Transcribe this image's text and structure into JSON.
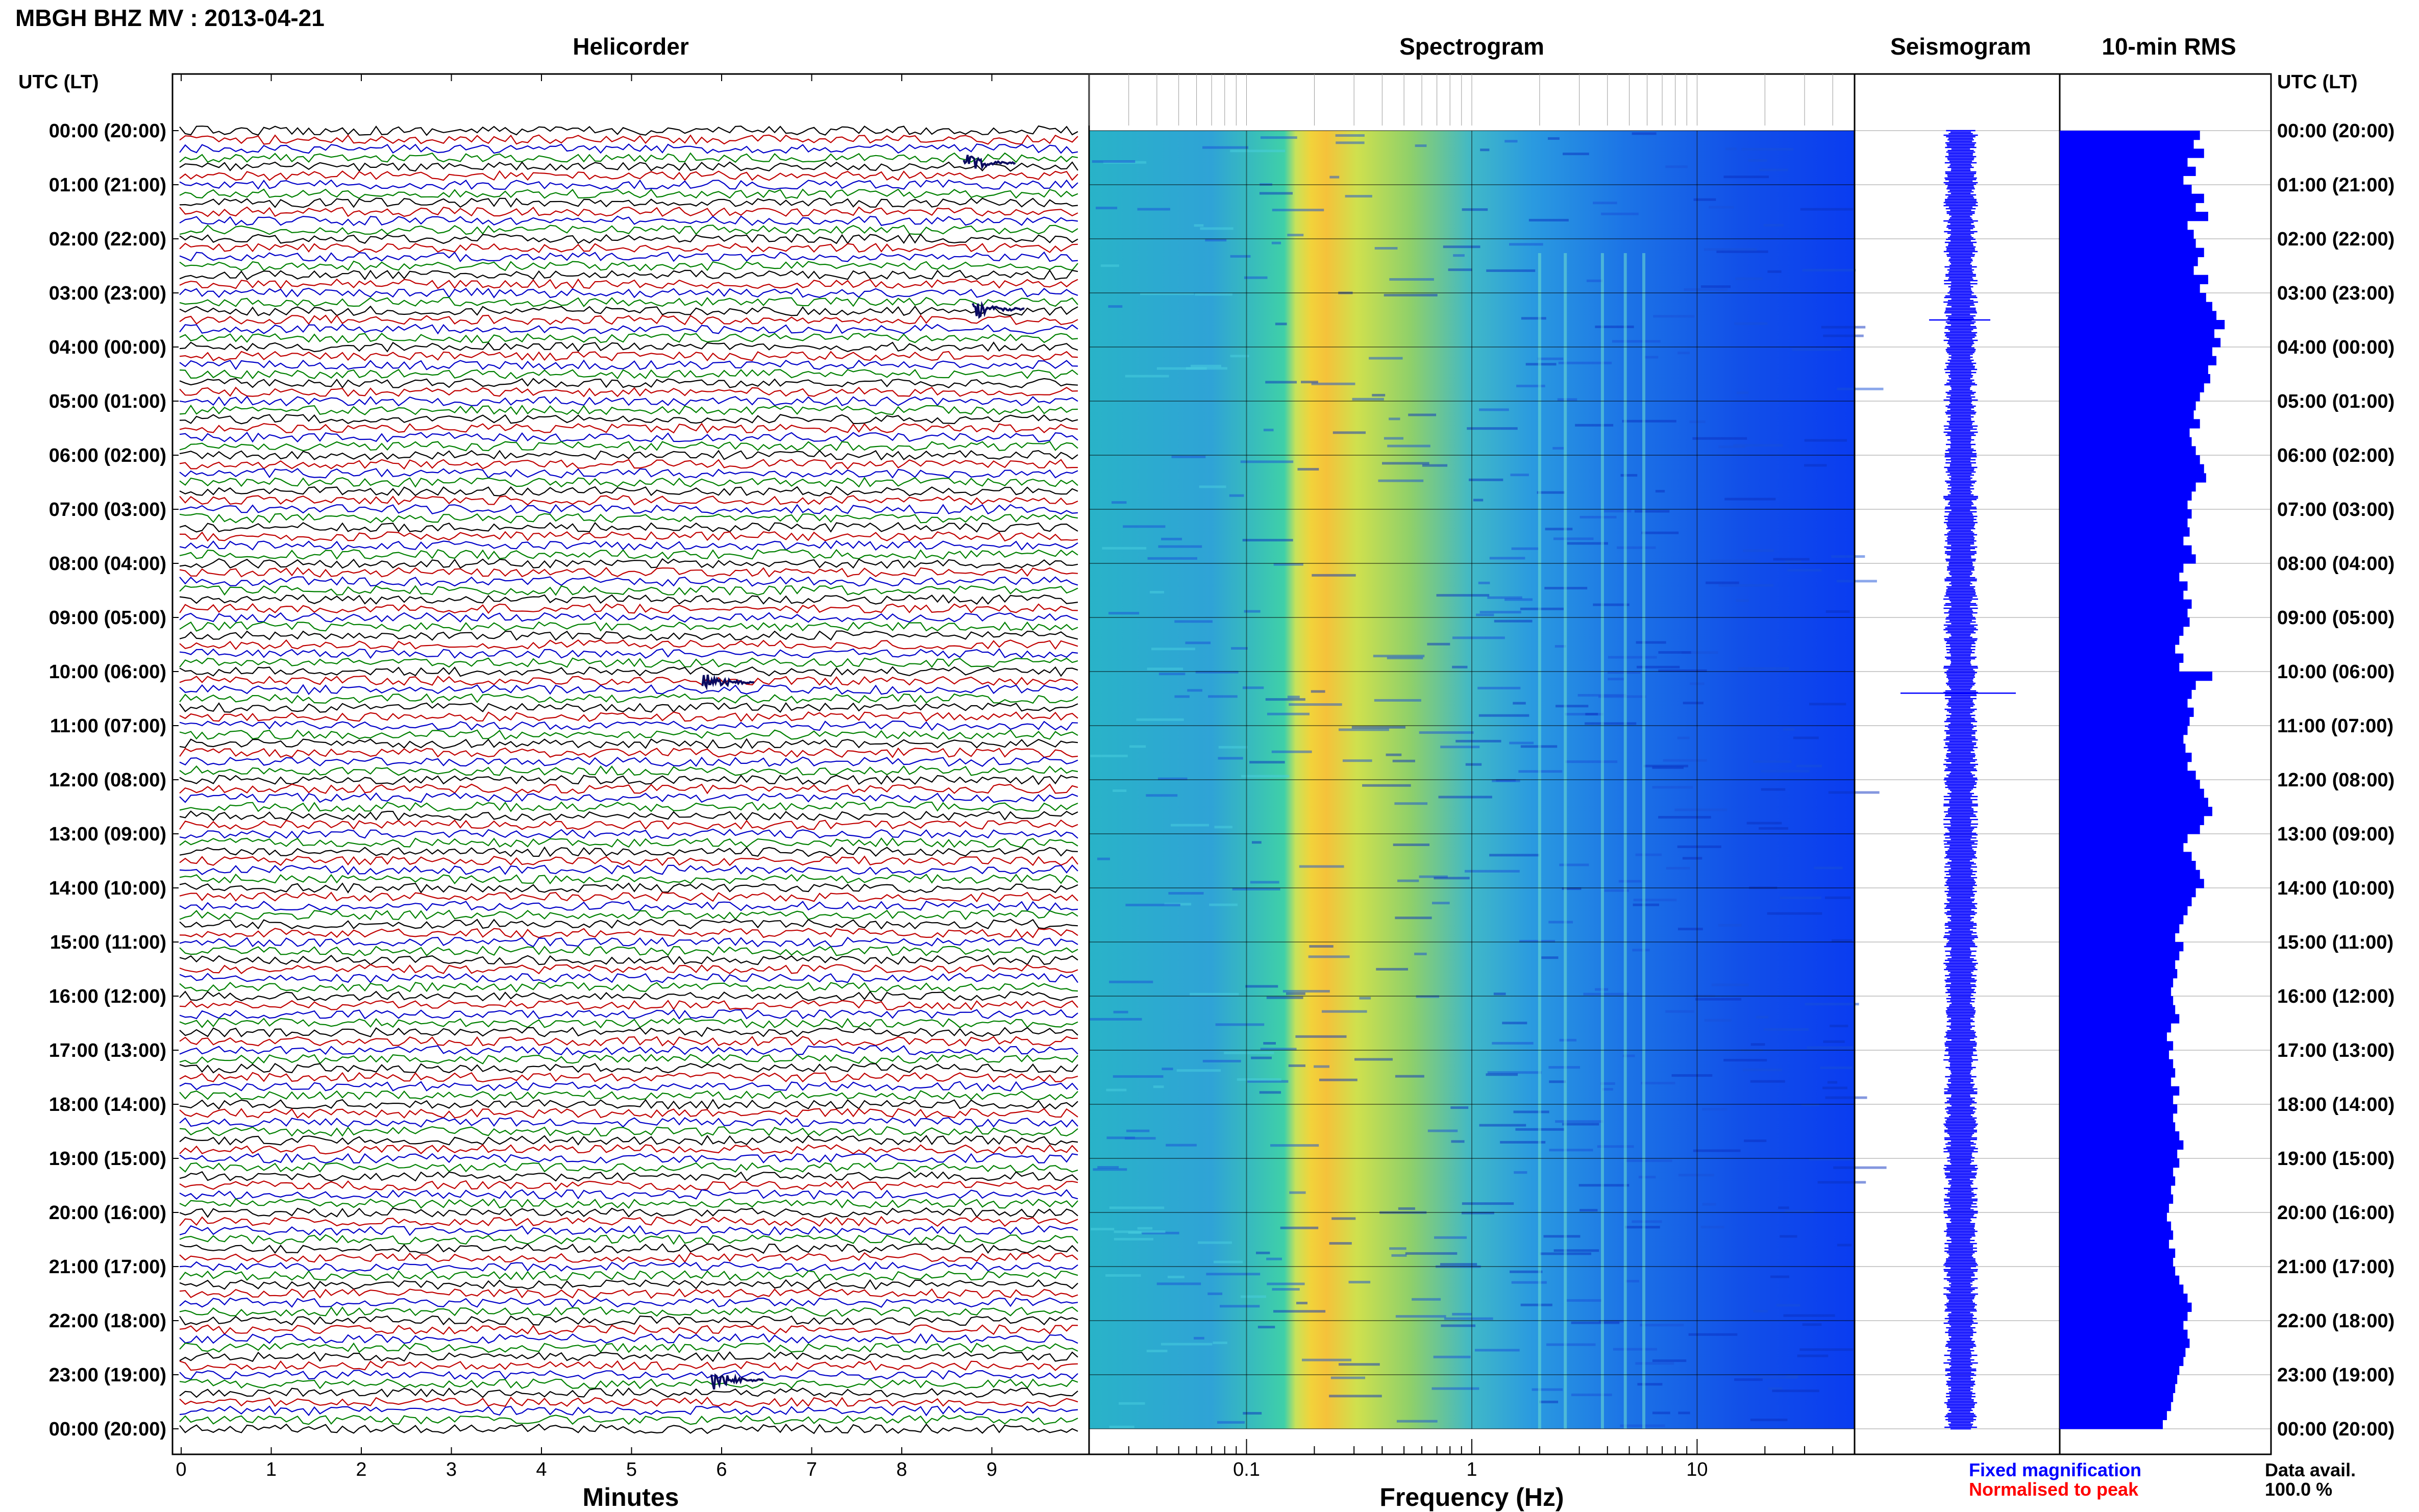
{
  "header": {
    "title": "MBGH BHZ MV : 2013-04-21"
  },
  "panels": {
    "helicorder": "Helicorder",
    "spectrogram": "Spectrogram",
    "seismogram": "Seismogram",
    "rms": "10-min RMS"
  },
  "axes": {
    "utc_header_left": "UTC (LT)",
    "utc_header_right": "UTC (LT)",
    "minutes_label": "Minutes",
    "frequency_label": "Frequency (Hz)"
  },
  "legend": {
    "fixed": "Fixed magnification",
    "normalised": "Normalised to peak",
    "data_avail_label": "Data avail.",
    "data_avail_value": "100.0 %"
  },
  "colors": {
    "trace_cycle": [
      "#000000",
      "#c00000",
      "#0000c8",
      "#008000"
    ],
    "seismogram": "#0000ff",
    "rms": "#0000ff",
    "fixed_legend": "#0000ff",
    "normalised_legend": "#ff0000"
  },
  "chart_data": [
    {
      "type": "line",
      "panel": "helicorder",
      "xlabel": "Minutes",
      "x_ticks": [
        0,
        1,
        2,
        3,
        4,
        5,
        6,
        7,
        8,
        9
      ],
      "xlim": [
        0,
        10
      ],
      "y_tick_labels": [
        "00:00 (20:00)",
        "01:00 (21:00)",
        "02:00 (22:00)",
        "03:00 (23:00)",
        "04:00 (00:00)",
        "05:00 (01:00)",
        "06:00 (02:00)",
        "07:00 (03:00)",
        "08:00 (04:00)",
        "09:00 (05:00)",
        "10:00 (06:00)",
        "11:00 (07:00)",
        "12:00 (08:00)",
        "13:00 (09:00)",
        "14:00 (10:00)",
        "15:00 (11:00)",
        "16:00 (12:00)",
        "17:00 (13:00)",
        "18:00 (14:00)",
        "19:00 (15:00)",
        "20:00 (16:00)",
        "21:00 (17:00)",
        "22:00 (18:00)",
        "23:00 (19:00)",
        "00:00 (20:00)"
      ],
      "lines_per_hour": 6,
      "minutes_per_line": 10,
      "events_minute_hour": [
        [
          8.8,
          0.6
        ],
        [
          8.9,
          3.3
        ],
        [
          5.9,
          10.2
        ],
        [
          6.0,
          23.1
        ]
      ]
    },
    {
      "type": "heatmap",
      "panel": "spectrogram",
      "xlabel": "Frequency (Hz)",
      "x_scale": "log",
      "x_ticks": [
        0.1,
        1,
        10
      ],
      "xlim": [
        0.02,
        50
      ],
      "peak_band_hz": [
        0.18,
        0.45
      ],
      "tremor_lines_hz": [
        2.0,
        2.6,
        3.8,
        4.8,
        5.8
      ]
    },
    {
      "type": "line",
      "panel": "seismogram",
      "grid": true
    },
    {
      "type": "bar",
      "panel": "10-min RMS",
      "orientation": "horizontal",
      "values": [
        0.68,
        0.65,
        0.7,
        0.62,
        0.66,
        0.6,
        0.64,
        0.7,
        0.66,
        0.72,
        0.62,
        0.65,
        0.66,
        0.7,
        0.67,
        0.65,
        0.72,
        0.68,
        0.71,
        0.74,
        0.76,
        0.8,
        0.75,
        0.78,
        0.74,
        0.76,
        0.72,
        0.73,
        0.7,
        0.68,
        0.66,
        0.65,
        0.68,
        0.63,
        0.64,
        0.66,
        0.68,
        0.7,
        0.71,
        0.66,
        0.64,
        0.62,
        0.64,
        0.62,
        0.63,
        0.6,
        0.64,
        0.66,
        0.6,
        0.58,
        0.62,
        0.6,
        0.64,
        0.62,
        0.63,
        0.6,
        0.58,
        0.56,
        0.6,
        0.58,
        0.74,
        0.66,
        0.64,
        0.62,
        0.65,
        0.63,
        0.62,
        0.6,
        0.61,
        0.64,
        0.62,
        0.66,
        0.68,
        0.7,
        0.72,
        0.74,
        0.7,
        0.68,
        0.62,
        0.6,
        0.64,
        0.66,
        0.68,
        0.7,
        0.66,
        0.64,
        0.62,
        0.6,
        0.58,
        0.56,
        0.6,
        0.58,
        0.56,
        0.57,
        0.55,
        0.54,
        0.55,
        0.56,
        0.58,
        0.54,
        0.52,
        0.55,
        0.53,
        0.55,
        0.56,
        0.54,
        0.58,
        0.55,
        0.57,
        0.55,
        0.56,
        0.58,
        0.6,
        0.57,
        0.58,
        0.55,
        0.56,
        0.54,
        0.55,
        0.53,
        0.52,
        0.54,
        0.55,
        0.53,
        0.56,
        0.55,
        0.56,
        0.58,
        0.6,
        0.62,
        0.64,
        0.62,
        0.6,
        0.62,
        0.63,
        0.61,
        0.6,
        0.58,
        0.57,
        0.56,
        0.55,
        0.54,
        0.52,
        0.5
      ]
    }
  ]
}
